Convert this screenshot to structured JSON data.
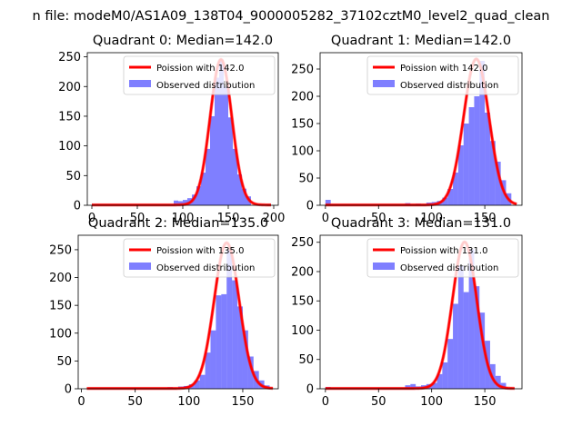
{
  "figure": {
    "suptitle": "n file: modeM0/AS1A09_138T04_9000005282_37102cztM0_level2_quad_clean"
  },
  "chart_data": [
    {
      "type": "bar",
      "title": "Quadrant 0: Median=142.0",
      "xlabel": "",
      "ylabel": "",
      "xlim": [
        -5,
        205
      ],
      "ylim": [
        0,
        257
      ],
      "xticks": [
        0,
        50,
        100,
        150,
        200
      ],
      "yticks": [
        0,
        50,
        100,
        150,
        200,
        250
      ],
      "legend": [
        "Poission with 142.0",
        "Observed distribution"
      ],
      "legend_loc": "upper right",
      "hist": {
        "name": "Observed distribution",
        "color": "#0000ff",
        "alpha": 0.5,
        "bins": [
          [
            0,
            0,
            3
          ],
          [
            75,
            80,
            1
          ],
          [
            80,
            85,
            2
          ],
          [
            85,
            90,
            2
          ],
          [
            90,
            95,
            8
          ],
          [
            95,
            100,
            7
          ],
          [
            100,
            105,
            9
          ],
          [
            105,
            110,
            12
          ],
          [
            110,
            115,
            18
          ],
          [
            115,
            120,
            32
          ],
          [
            120,
            125,
            55
          ],
          [
            125,
            130,
            95
          ],
          [
            130,
            135,
            150
          ],
          [
            135,
            140,
            215
          ],
          [
            140,
            145,
            245
          ],
          [
            145,
            150,
            200
          ],
          [
            150,
            155,
            148
          ],
          [
            155,
            160,
            95
          ],
          [
            160,
            165,
            52
          ],
          [
            165,
            170,
            28
          ],
          [
            170,
            175,
            15
          ]
        ]
      },
      "curve": {
        "name": "Poission with 142.0",
        "mu": 142.0,
        "scale": 245,
        "x_range": [
          0,
          197
        ],
        "color": "#ff0000"
      }
    },
    {
      "type": "bar",
      "title": "Quadrant 1: Median=142.0",
      "xlabel": "",
      "ylabel": "",
      "xlim": [
        -5,
        185
      ],
      "ylim": [
        0,
        280
      ],
      "xticks": [
        0,
        50,
        100,
        150
      ],
      "yticks": [
        0,
        50,
        100,
        150,
        200,
        250
      ],
      "legend": [
        "Poission with 142.0",
        "Observed distribution"
      ],
      "legend_loc": "upper right",
      "hist": {
        "name": "Observed distribution",
        "color": "#0000ff",
        "alpha": 0.5,
        "bins": [
          [
            0,
            5,
            10
          ],
          [
            75,
            80,
            4
          ],
          [
            85,
            90,
            3
          ],
          [
            95,
            100,
            5
          ],
          [
            100,
            105,
            6
          ],
          [
            105,
            110,
            8
          ],
          [
            110,
            115,
            14
          ],
          [
            115,
            120,
            30
          ],
          [
            120,
            125,
            60
          ],
          [
            125,
            130,
            110
          ],
          [
            130,
            135,
            150
          ],
          [
            135,
            140,
            180
          ],
          [
            140,
            145,
            200
          ],
          [
            145,
            150,
            265
          ],
          [
            150,
            155,
            170
          ],
          [
            155,
            160,
            118
          ],
          [
            160,
            165,
            80
          ],
          [
            165,
            170,
            46
          ],
          [
            170,
            175,
            22
          ]
        ]
      },
      "curve": {
        "name": "Poission with 142.0",
        "mu": 142.0,
        "scale": 268,
        "x_range": [
          0,
          180
        ],
        "color": "#ff0000"
      }
    },
    {
      "type": "bar",
      "title": "Quadrant 2: Median=135.0",
      "xlabel": "",
      "ylabel": "",
      "xlim": [
        -3,
        183
      ],
      "ylim": [
        0,
        276
      ],
      "xticks": [
        0,
        50,
        100,
        150
      ],
      "yticks": [
        0,
        50,
        100,
        150,
        200,
        250
      ],
      "legend": [
        "Poission with 135.0",
        "Observed distribution"
      ],
      "legend_loc": "upper right",
      "hist": {
        "name": "Observed distribution",
        "color": "#0000ff",
        "alpha": 0.5,
        "bins": [
          [
            80,
            85,
            3
          ],
          [
            90,
            95,
            4
          ],
          [
            95,
            100,
            5
          ],
          [
            100,
            105,
            8
          ],
          [
            105,
            110,
            15
          ],
          [
            110,
            115,
            25
          ],
          [
            115,
            120,
            65
          ],
          [
            120,
            125,
            105
          ],
          [
            125,
            130,
            168
          ],
          [
            130,
            135,
            170
          ],
          [
            135,
            140,
            250
          ],
          [
            140,
            145,
            195
          ],
          [
            145,
            150,
            148
          ],
          [
            150,
            155,
            105
          ],
          [
            155,
            160,
            58
          ],
          [
            160,
            165,
            32
          ],
          [
            165,
            170,
            15
          ],
          [
            170,
            175,
            6
          ]
        ]
      },
      "curve": {
        "name": "Poission with 135.0",
        "mu": 135.0,
        "scale": 262,
        "x_range": [
          5,
          178
        ],
        "color": "#ff0000"
      }
    },
    {
      "type": "bar",
      "title": "Quadrant 3: Median=131.0",
      "xlabel": "",
      "ylabel": "",
      "xlim": [
        -5,
        185
      ],
      "ylim": [
        0,
        262
      ],
      "xticks": [
        0,
        50,
        100,
        150
      ],
      "yticks": [
        0,
        50,
        100,
        150,
        200,
        250
      ],
      "legend": [
        "Poission with 131.0",
        "Observed distribution"
      ],
      "legend_loc": "upper right",
      "hist": {
        "name": "Observed distribution",
        "color": "#0000ff",
        "alpha": 0.5,
        "bins": [
          [
            0,
            5,
            3
          ],
          [
            75,
            80,
            6
          ],
          [
            80,
            85,
            8
          ],
          [
            85,
            90,
            4
          ],
          [
            90,
            95,
            6
          ],
          [
            95,
            100,
            8
          ],
          [
            100,
            105,
            10
          ],
          [
            105,
            110,
            25
          ],
          [
            110,
            115,
            45
          ],
          [
            115,
            120,
            85
          ],
          [
            120,
            125,
            145
          ],
          [
            125,
            130,
            210
          ],
          [
            130,
            135,
            165
          ],
          [
            135,
            140,
            238
          ],
          [
            140,
            145,
            175
          ],
          [
            145,
            150,
            130
          ],
          [
            150,
            155,
            82
          ],
          [
            155,
            160,
            42
          ],
          [
            160,
            165,
            22
          ],
          [
            165,
            170,
            10
          ]
        ]
      },
      "curve": {
        "name": "Poission with 131.0",
        "mu": 131.0,
        "scale": 250,
        "x_range": [
          0,
          178
        ],
        "color": "#ff0000"
      }
    }
  ]
}
